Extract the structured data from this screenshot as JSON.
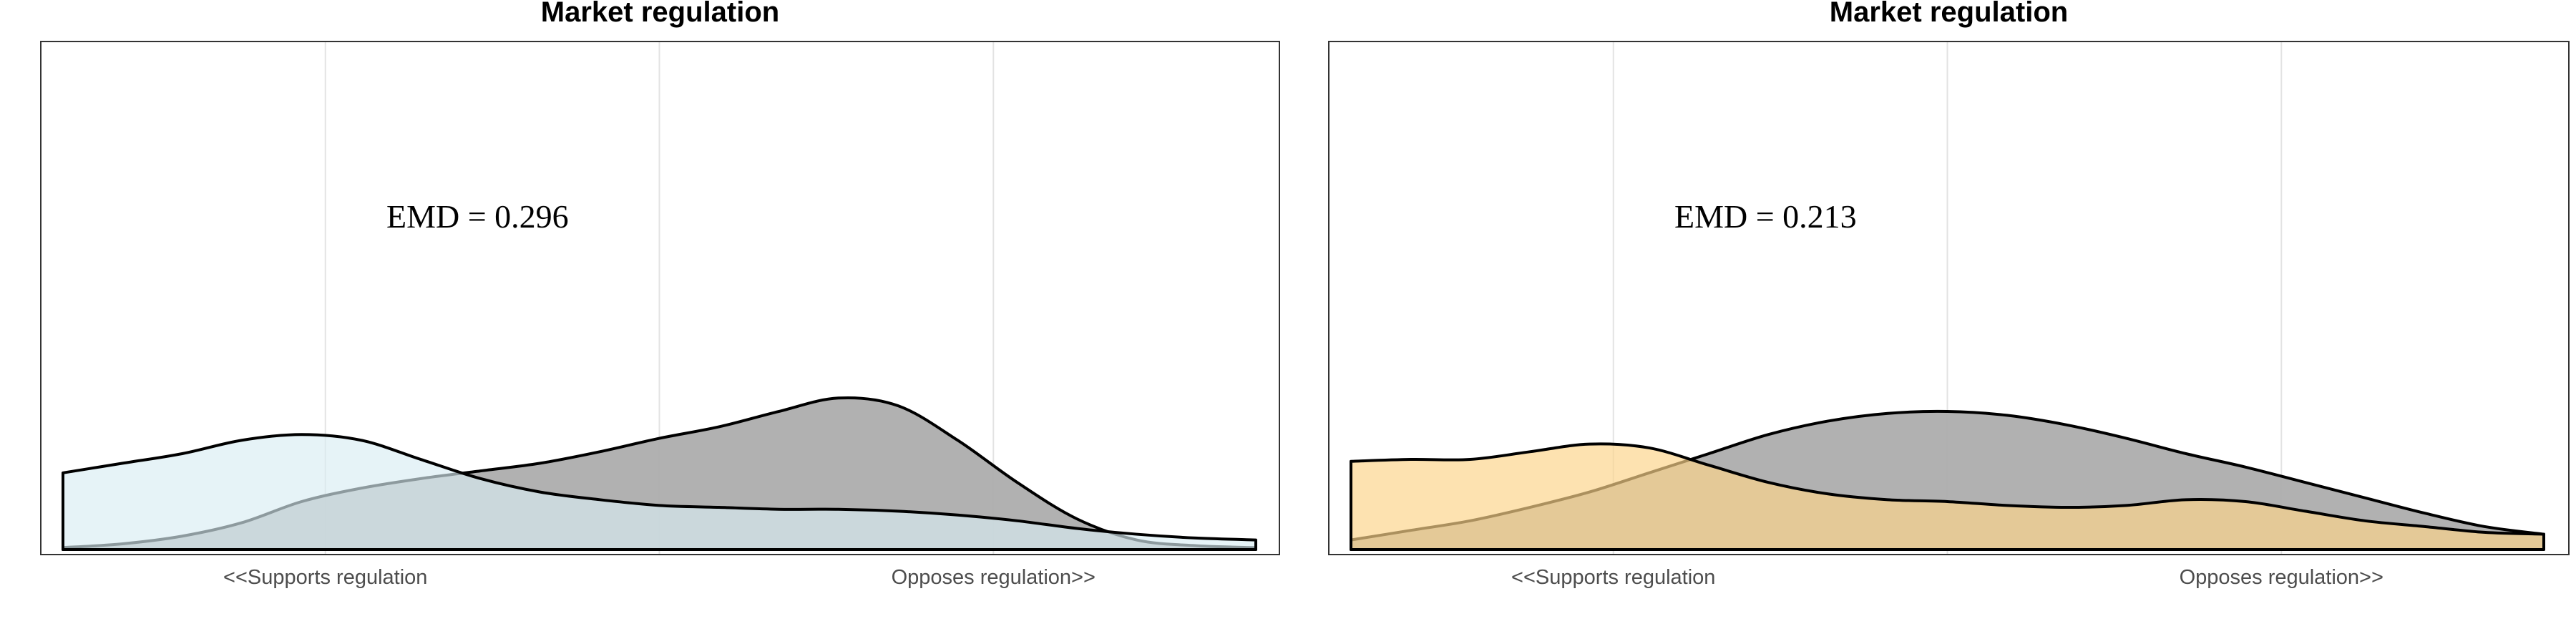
{
  "chart_data": [
    {
      "type": "area",
      "title": "Market regulation",
      "annotation": "EMD = 0.296",
      "x_range": [
        0,
        1
      ],
      "y_range": [
        0,
        1
      ],
      "grid": true,
      "x_ticks": [
        {
          "value": 0.22,
          "label": "<<Supports regulation"
        },
        {
          "value": 0.5,
          "label": ""
        },
        {
          "value": 0.78,
          "label": "Opposes regulation>>"
        }
      ],
      "series": [
        {
          "color": "#adadad",
          "opacity": 0.95,
          "points": [
            [
              0.0,
              0.01
            ],
            [
              0.05,
              0.03
            ],
            [
              0.1,
              0.07
            ],
            [
              0.15,
              0.14
            ],
            [
              0.2,
              0.25
            ],
            [
              0.25,
              0.32
            ],
            [
              0.3,
              0.37
            ],
            [
              0.35,
              0.41
            ],
            [
              0.4,
              0.45
            ],
            [
              0.45,
              0.51
            ],
            [
              0.5,
              0.58
            ],
            [
              0.55,
              0.64
            ],
            [
              0.6,
              0.72
            ],
            [
              0.65,
              0.79
            ],
            [
              0.7,
              0.75
            ],
            [
              0.75,
              0.57
            ],
            [
              0.8,
              0.35
            ],
            [
              0.85,
              0.16
            ],
            [
              0.9,
              0.05
            ],
            [
              0.95,
              0.02
            ],
            [
              1.0,
              0.01
            ]
          ]
        },
        {
          "color": "#d8ecf3",
          "opacity": 0.65,
          "points": [
            [
              0.0,
              0.4
            ],
            [
              0.05,
              0.45
            ],
            [
              0.1,
              0.5
            ],
            [
              0.15,
              0.57
            ],
            [
              0.2,
              0.6
            ],
            [
              0.25,
              0.57
            ],
            [
              0.3,
              0.47
            ],
            [
              0.35,
              0.37
            ],
            [
              0.4,
              0.3
            ],
            [
              0.45,
              0.26
            ],
            [
              0.5,
              0.23
            ],
            [
              0.55,
              0.22
            ],
            [
              0.6,
              0.21
            ],
            [
              0.65,
              0.21
            ],
            [
              0.7,
              0.2
            ],
            [
              0.75,
              0.18
            ],
            [
              0.8,
              0.15
            ],
            [
              0.85,
              0.11
            ],
            [
              0.9,
              0.08
            ],
            [
              0.95,
              0.06
            ],
            [
              1.0,
              0.05
            ]
          ]
        }
      ]
    },
    {
      "type": "area",
      "title": "Market regulation",
      "annotation": "EMD = 0.213",
      "x_range": [
        0,
        1
      ],
      "y_range": [
        0,
        1
      ],
      "grid": true,
      "x_ticks": [
        {
          "value": 0.22,
          "label": "<<Supports regulation"
        },
        {
          "value": 0.5,
          "label": ""
        },
        {
          "value": 0.78,
          "label": "Opposes regulation>>"
        }
      ],
      "series": [
        {
          "color": "#adadad",
          "opacity": 0.95,
          "points": [
            [
              0.0,
              0.05
            ],
            [
              0.05,
              0.1
            ],
            [
              0.1,
              0.15
            ],
            [
              0.15,
              0.22
            ],
            [
              0.2,
              0.3
            ],
            [
              0.25,
              0.4
            ],
            [
              0.3,
              0.5
            ],
            [
              0.35,
              0.6
            ],
            [
              0.4,
              0.67
            ],
            [
              0.45,
              0.71
            ],
            [
              0.5,
              0.72
            ],
            [
              0.55,
              0.7
            ],
            [
              0.6,
              0.65
            ],
            [
              0.65,
              0.58
            ],
            [
              0.7,
              0.5
            ],
            [
              0.75,
              0.43
            ],
            [
              0.8,
              0.35
            ],
            [
              0.85,
              0.27
            ],
            [
              0.9,
              0.19
            ],
            [
              0.95,
              0.12
            ],
            [
              1.0,
              0.08
            ]
          ]
        },
        {
          "color": "#fcd48a",
          "opacity": 0.68,
          "points": [
            [
              0.0,
              0.46
            ],
            [
              0.05,
              0.47
            ],
            [
              0.1,
              0.47
            ],
            [
              0.15,
              0.51
            ],
            [
              0.2,
              0.55
            ],
            [
              0.25,
              0.53
            ],
            [
              0.3,
              0.44
            ],
            [
              0.35,
              0.35
            ],
            [
              0.4,
              0.29
            ],
            [
              0.45,
              0.26
            ],
            [
              0.5,
              0.25
            ],
            [
              0.55,
              0.23
            ],
            [
              0.6,
              0.22
            ],
            [
              0.65,
              0.23
            ],
            [
              0.7,
              0.26
            ],
            [
              0.75,
              0.25
            ],
            [
              0.8,
              0.2
            ],
            [
              0.85,
              0.15
            ],
            [
              0.9,
              0.12
            ],
            [
              0.95,
              0.09
            ],
            [
              1.0,
              0.08
            ]
          ]
        }
      ]
    }
  ]
}
